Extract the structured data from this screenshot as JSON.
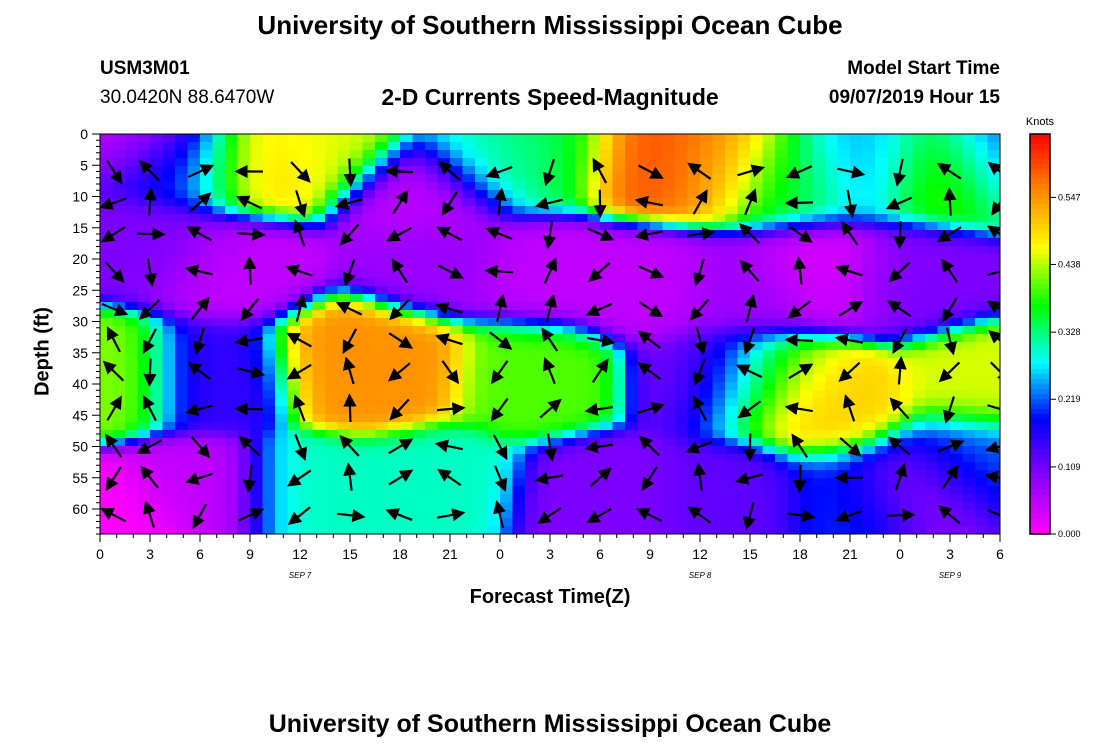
{
  "header": {
    "title": "University of Southern Mississippi Ocean Cube",
    "station": "USM3M01",
    "coords": "30.0420N 88.6470W",
    "plot_title": "2-D Currents Speed-Magnitude",
    "model_label": "Model Start Time",
    "model_time": "09/07/2019 Hour 15"
  },
  "footer": {
    "title": "University of Southern Mississippi Ocean Cube"
  },
  "colors": {
    "scale": [
      "#ff00ff",
      "#8800ff",
      "#0000ff",
      "#00ffff",
      "#00ff00",
      "#ffff00",
      "#ff8800",
      "#ff0000"
    ]
  },
  "chart_data": {
    "type": "heatmap",
    "xlabel": "Forecast Time(Z)",
    "ylabel": "Depth (ft)",
    "x_ticks": [
      "0",
      "3",
      "6",
      "9",
      "12",
      "15",
      "18",
      "21",
      "0",
      "3",
      "6",
      "9",
      "12",
      "15",
      "18",
      "21",
      "0",
      "3",
      "6"
    ],
    "x_range_hours": [
      0,
      54
    ],
    "date_labels": [
      {
        "text": "SEP 7",
        "hour": 12
      },
      {
        "text": "SEP 8",
        "hour": 36
      },
      {
        "text": "SEP 9",
        "hour": 51
      }
    ],
    "y_ticks": [
      0,
      5,
      10,
      15,
      20,
      25,
      30,
      35,
      40,
      45,
      50,
      55,
      60
    ],
    "ylim": [
      0,
      64
    ],
    "colorbar": {
      "label": "Knots",
      "ticks": [
        "0.000",
        "0.109",
        "0.219",
        "0.328",
        "0.438",
        "0.547"
      ],
      "tick_values": [
        0,
        0.109,
        0.219,
        0.328,
        0.438,
        0.547
      ],
      "range": [
        0,
        0.65
      ]
    },
    "speed_blobs": [
      {
        "hour": 2.5,
        "depth": 0,
        "value": 0.05
      },
      {
        "hour": 9.5,
        "depth": 4,
        "value": 0.5
      },
      {
        "hour": 13,
        "depth": 2,
        "value": 0.45
      },
      {
        "hour": 5,
        "depth": 4,
        "value": 0.2
      },
      {
        "hour": 19.5,
        "depth": 10,
        "value": 0.05
      },
      {
        "hour": 24,
        "depth": 4,
        "value": 0.3
      },
      {
        "hour": 27,
        "depth": 3,
        "value": 0.35
      },
      {
        "hour": 33,
        "depth": 4,
        "value": 0.6
      },
      {
        "hour": 37,
        "depth": 5,
        "value": 0.55
      },
      {
        "hour": 41,
        "depth": 7,
        "value": 0.35
      },
      {
        "hour": 46,
        "depth": 5,
        "value": 0.25
      },
      {
        "hour": 51,
        "depth": 6,
        "value": 0.42
      },
      {
        "hour": 54,
        "depth": 4,
        "value": 0.2
      },
      {
        "hour": 3,
        "depth": 18,
        "value": 0.1
      },
      {
        "hour": 8,
        "depth": 22,
        "value": 0.05
      },
      {
        "hour": 20,
        "depth": 20,
        "value": 0.08
      },
      {
        "hour": 27,
        "depth": 22,
        "value": 0.05
      },
      {
        "hour": 33,
        "depth": 24,
        "value": 0.05
      },
      {
        "hour": 39,
        "depth": 25,
        "value": 0.08
      },
      {
        "hour": 43,
        "depth": 22,
        "value": 0.03
      },
      {
        "hour": 49,
        "depth": 23,
        "value": 0.1
      },
      {
        "hour": 15,
        "depth": 36,
        "value": 0.55
      },
      {
        "hour": 17,
        "depth": 38,
        "value": 0.55
      },
      {
        "hour": 0.5,
        "depth": 38,
        "value": 0.42
      },
      {
        "hour": 26,
        "depth": 39,
        "value": 0.4
      },
      {
        "hour": 37,
        "depth": 39,
        "value": 0.1
      },
      {
        "hour": 40,
        "depth": 40,
        "value": 0.45
      },
      {
        "hour": 44,
        "depth": 44,
        "value": 0.5
      },
      {
        "hour": 53,
        "depth": 40,
        "value": 0.45
      },
      {
        "hour": 7,
        "depth": 38,
        "value": 0.15
      },
      {
        "hour": 1,
        "depth": 62,
        "value": 0.0
      },
      {
        "hour": 6,
        "depth": 58,
        "value": 0.05
      },
      {
        "hour": 13,
        "depth": 58,
        "value": 0.3
      },
      {
        "hour": 20,
        "depth": 56,
        "value": 0.3
      },
      {
        "hour": 30,
        "depth": 58,
        "value": 0.1
      },
      {
        "hour": 38,
        "depth": 58,
        "value": 0.12
      },
      {
        "hour": 45,
        "depth": 58,
        "value": 0.2
      },
      {
        "hour": 49,
        "depth": 56,
        "value": 0.08
      },
      {
        "hour": 52,
        "depth": 52,
        "value": 0.22
      }
    ],
    "vector_grid": {
      "hours": [
        0,
        3,
        6,
        9,
        12,
        15,
        18,
        21,
        24,
        27,
        30,
        33,
        36,
        39,
        42,
        45,
        48,
        51,
        54
      ],
      "depths": [
        6,
        11,
        16,
        22,
        28,
        33,
        38,
        44,
        50,
        55,
        61
      ]
    }
  }
}
